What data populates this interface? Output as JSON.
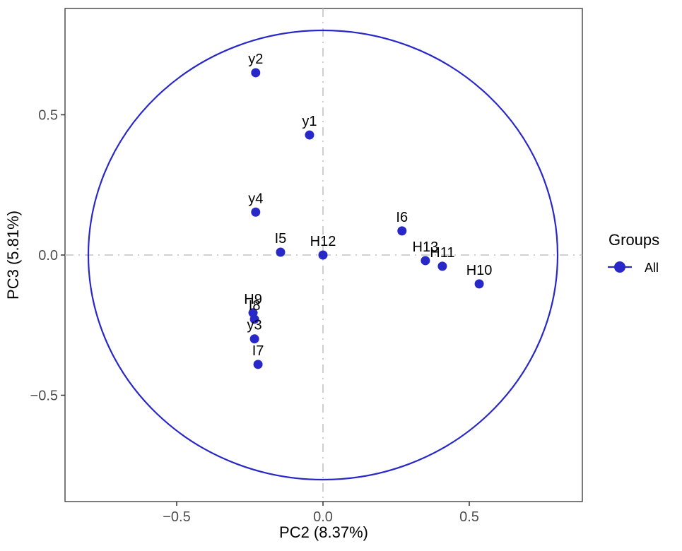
{
  "figure": {
    "x_axis": {
      "title": "PC2 (8.37%)",
      "tick_labels": [
        "−0.5",
        "0.0",
        "0.5"
      ],
      "tick_values": [
        -0.5,
        0.0,
        0.5
      ]
    },
    "y_axis": {
      "title": "PC3 (5.81%)",
      "tick_labels": [
        "0.5",
        "0.0",
        "−0.5"
      ],
      "tick_values": [
        0.5,
        0.0,
        -0.5
      ]
    },
    "legend": {
      "title": "Groups",
      "items": [
        {
          "label": "All",
          "color": "#2828c8"
        }
      ]
    },
    "colors": {
      "points": "#2828c8",
      "circle_outline": "#2828c8",
      "reference_lines": "#c2c2c2",
      "panel_border": "#333333",
      "tick_text": "#4d4d4d"
    }
  },
  "chart_data": {
    "type": "scatter",
    "title": "",
    "xlabel": "PC2 (8.37%)",
    "ylabel": "PC3 (5.81%)",
    "xlim": [
      -0.88,
      0.89
    ],
    "ylim": [
      -0.88,
      0.88
    ],
    "x_ticks": [
      -0.5,
      0.0,
      0.5
    ],
    "y_ticks": [
      -0.5,
      0.0,
      0.5
    ],
    "grid": false,
    "legend_position": "right",
    "reference_lines": {
      "vline_x": 0,
      "hline_y": 0,
      "style": "dash-dot",
      "color": "#c2c2c2"
    },
    "correlation_circle": {
      "cx": 0,
      "cy": 0,
      "radius": 0.8,
      "color": "#2828c8"
    },
    "series": [
      {
        "name": "All",
        "color": "#2828c8",
        "points": [
          {
            "label": "y2",
            "x": -0.23,
            "y": 0.65
          },
          {
            "label": "y1",
            "x": -0.046,
            "y": 0.428
          },
          {
            "label": "y4",
            "x": -0.23,
            "y": 0.153
          },
          {
            "label": "I5",
            "x": -0.145,
            "y": 0.01
          },
          {
            "label": "H12",
            "x": 0.0,
            "y": 0.0
          },
          {
            "label": "I6",
            "x": 0.27,
            "y": 0.086
          },
          {
            "label": "H13",
            "x": 0.35,
            "y": -0.02
          },
          {
            "label": "H11",
            "x": 0.408,
            "y": -0.04
          },
          {
            "label": "H10",
            "x": 0.534,
            "y": -0.103
          },
          {
            "label": "H9",
            "x": -0.239,
            "y": -0.206
          },
          {
            "label": "I8",
            "x": -0.234,
            "y": -0.229
          },
          {
            "label": "y3",
            "x": -0.234,
            "y": -0.299
          },
          {
            "label": "I7",
            "x": -0.222,
            "y": -0.39
          }
        ]
      }
    ]
  }
}
